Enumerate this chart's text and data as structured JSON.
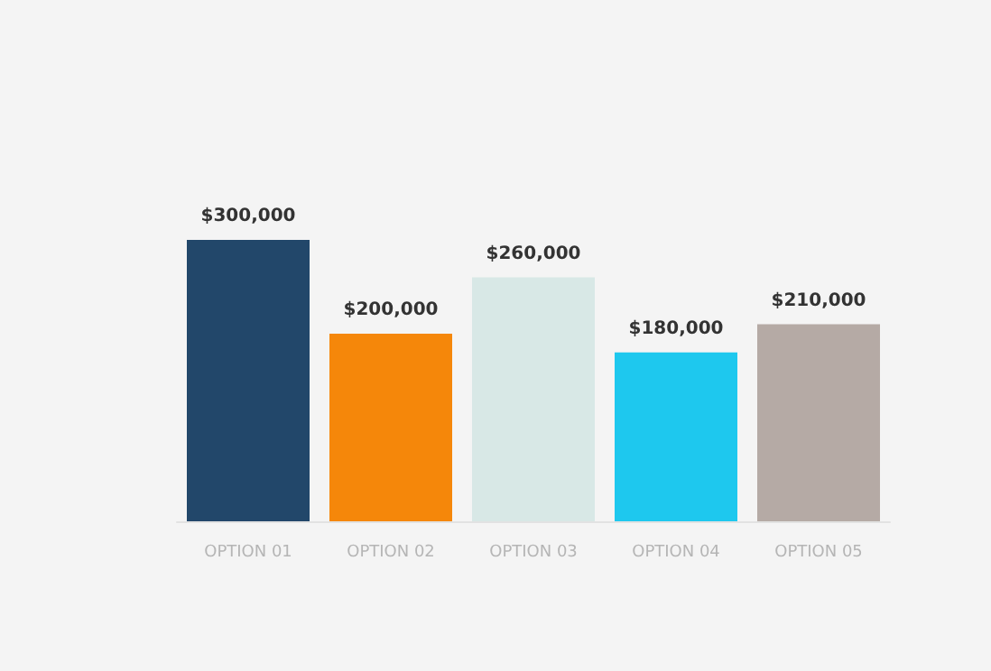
{
  "chart_data": {
    "type": "bar",
    "categories": [
      "OPTION 01",
      "OPTION 02",
      "OPTION 03",
      "OPTION 04",
      "OPTION 05"
    ],
    "values": [
      300000,
      200000,
      260000,
      180000,
      210000
    ],
    "colors": [
      "#22476a",
      "#f5870a",
      "#d8e8e6",
      "#1ec8ee",
      "#b5aaa5"
    ],
    "value_labels": [
      "$300,000",
      "$200,000",
      "$260,000",
      "$180,000",
      "$210,000"
    ],
    "grid": false
  }
}
